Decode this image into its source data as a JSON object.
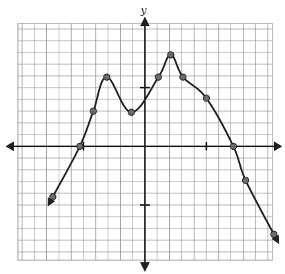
{
  "chart_data": {
    "type": "line",
    "title": "",
    "xlabel": "",
    "ylabel": "y",
    "xlim": [
      -11,
      11
    ],
    "ylim": [
      -10,
      10
    ],
    "grid": true,
    "grid_step": 1,
    "x_tick_marks": [
      -5,
      5
    ],
    "y_tick_marks": [
      -5,
      5
    ],
    "series": [
      {
        "points": [
          [
            -7.5,
            -4.3
          ],
          [
            -5.3,
            0
          ],
          [
            -4.2,
            3
          ],
          [
            -3.1,
            5.9
          ],
          [
            -1.1,
            2.9
          ],
          [
            1.1,
            5.9
          ],
          [
            2.1,
            7.8
          ],
          [
            3.1,
            5.9
          ],
          [
            5.0,
            4.1
          ],
          [
            7.2,
            0
          ],
          [
            8.2,
            -2.9
          ],
          [
            10.5,
            -7.5
          ]
        ],
        "arrow_start": true,
        "arrow_end": true
      }
    ],
    "colors": {
      "grid": "#8c8c8c",
      "axes": "#1f1f1f",
      "curve": "#222222",
      "point_fill": "#6a6a6a"
    }
  }
}
